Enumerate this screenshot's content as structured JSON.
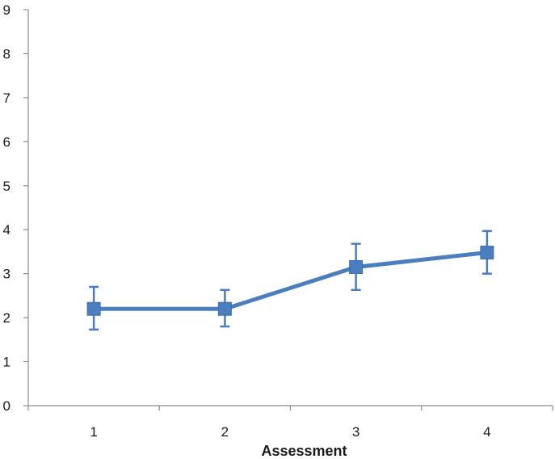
{
  "chart_data": {
    "type": "line",
    "xlabel": "Assessment",
    "ylabel": "",
    "categories": [
      "1",
      "2",
      "3",
      "4"
    ],
    "ylim": [
      0,
      9
    ],
    "yticks": [
      0,
      1,
      2,
      3,
      4,
      5,
      6,
      7,
      8,
      9
    ],
    "series": [
      {
        "values": [
          2.2,
          2.2,
          3.15,
          3.48
        ],
        "error_low": [
          1.73,
          1.8,
          2.63,
          3.0
        ],
        "error_high": [
          2.7,
          2.63,
          3.68,
          3.97
        ]
      }
    ],
    "grid": false,
    "legend": "none",
    "colors": {
      "series": "#4a7ebf",
      "axis": "#8c8c8c",
      "text": "#1a1a1a"
    }
  }
}
